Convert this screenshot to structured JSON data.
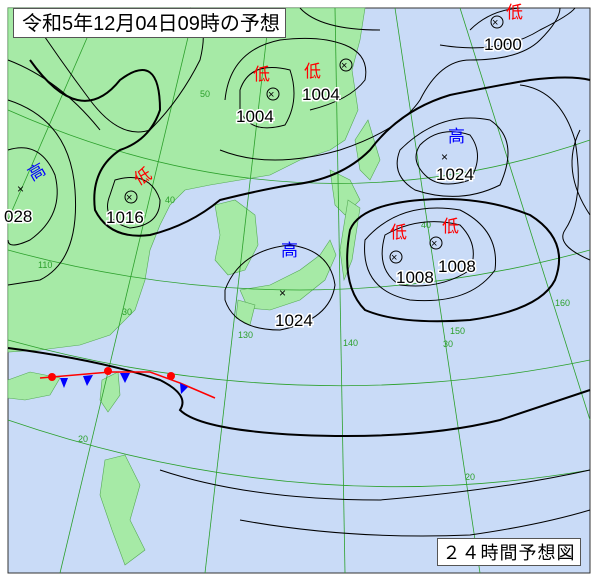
{
  "title": "令和5年12月04日09時の予想",
  "footer": "２４時間予想図",
  "colors": {
    "sea": "#c9dbf7",
    "land": "#a6eaa6",
    "grid": "#2ca02c",
    "low": "#ff0000",
    "high": "#0000ff",
    "isobar": "#000000",
    "warm_front": "#ff0000",
    "cold_front": "#0000ff"
  },
  "systems": [
    {
      "type": "low",
      "symbol": "低",
      "pressure": "1004"
    },
    {
      "type": "low",
      "symbol": "低",
      "pressure": "1004"
    },
    {
      "type": "low",
      "symbol": "低",
      "pressure": "1000"
    },
    {
      "type": "high",
      "symbol": "高",
      "pressure": "1024"
    },
    {
      "type": "high",
      "symbol": "高",
      "pressure": "028"
    },
    {
      "type": "low",
      "symbol": "低",
      "pressure": "1016"
    },
    {
      "type": "high",
      "symbol": "高",
      "pressure": "1024"
    },
    {
      "type": "low",
      "symbol": "低",
      "pressure": "1008"
    },
    {
      "type": "low",
      "symbol": "低",
      "pressure": "1008"
    }
  ],
  "grid_labels": [
    "50",
    "40",
    "30",
    "20",
    "110",
    "130",
    "140",
    "150",
    "160",
    "40",
    "30",
    "20"
  ],
  "front_type": "stationary-front"
}
